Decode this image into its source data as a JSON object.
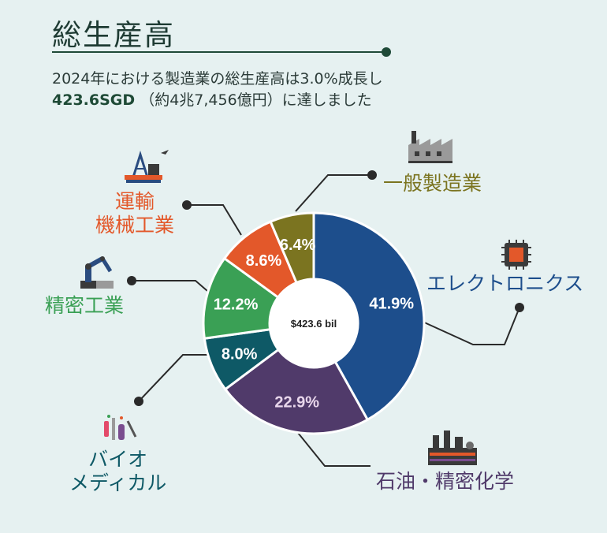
{
  "header": {
    "title": "総生産高",
    "subtitle_line1": "2024年における製造業の総生産高は3.0%成長し",
    "subtitle_amount": "423.6SGD",
    "subtitle_rest": "（約4兆7,456億円）に達しました"
  },
  "chart_data": {
    "type": "pie",
    "donut": true,
    "center_label": "$423.6 bil",
    "slices": [
      {
        "label": "エレクトロニクス",
        "value": 41.9,
        "value_label": "41.9%",
        "color": "#1d4e8c",
        "text_color": "#ffffff"
      },
      {
        "label": "石油・精密化学",
        "value": 22.9,
        "value_label": "22.9%",
        "color": "#503a6a",
        "text_color": "#e9d7ec"
      },
      {
        "label": "バイオ メディカル",
        "value": 8.0,
        "value_label": "8.0%",
        "color": "#0e5966",
        "text_color": "#ffffff"
      },
      {
        "label": "精密工業",
        "value": 12.2,
        "value_label": "12.2%",
        "color": "#3aa055",
        "text_color": "#ffffff"
      },
      {
        "label": "運輸 機械工業",
        "value": 8.6,
        "value_label": "8.6%",
        "color": "#e3582a",
        "text_color": "#ffffff"
      },
      {
        "label": "一般製造業",
        "value": 6.4,
        "value_label": "6.4%",
        "color": "#7b7420",
        "text_color": "#ffffff"
      }
    ]
  },
  "categories": {
    "electronics": {
      "text": "エレクトロニクス",
      "color": "#1d4e8c",
      "icon": "chip-icon"
    },
    "petro": {
      "text": "石油・精密化学",
      "color": "#503a6a",
      "icon": "refinery-icon"
    },
    "bio_line1": "バイオ",
    "bio_line2": "メディカル",
    "bio_color": "#0e5966",
    "precision": {
      "text": "精密工業",
      "color": "#3aa055",
      "icon": "robot-arm-icon"
    },
    "transport_line1": "運輸",
    "transport_line2": "機械工業",
    "transport_color": "#e3582a",
    "general": {
      "text": "一般製造業",
      "color": "#7b7420",
      "icon": "factory-icon"
    }
  }
}
